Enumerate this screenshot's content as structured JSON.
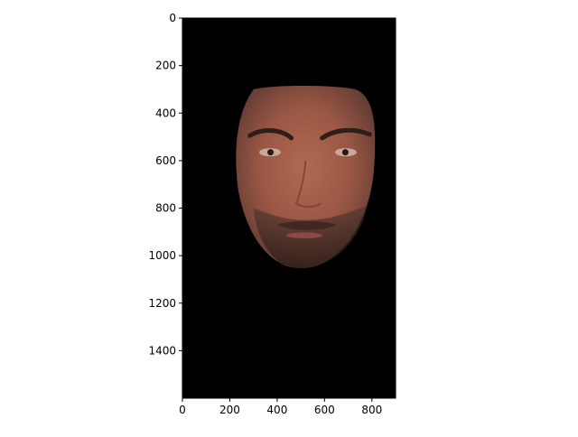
{
  "chart_data": {
    "type": "image",
    "title": "",
    "xlabel": "",
    "ylabel": "",
    "xlim": [
      0,
      900
    ],
    "ylim": [
      1600,
      0
    ],
    "x_ticks": [
      0,
      200,
      400,
      600,
      800
    ],
    "y_ticks": [
      0,
      200,
      400,
      600,
      800,
      1000,
      1200,
      1400
    ],
    "grid": false,
    "legend": "none",
    "background_color": "#000000",
    "image_content": "cropped face on black background",
    "face_extent": {
      "x": [
        230,
        810
      ],
      "y": [
        285,
        1050
      ]
    }
  }
}
